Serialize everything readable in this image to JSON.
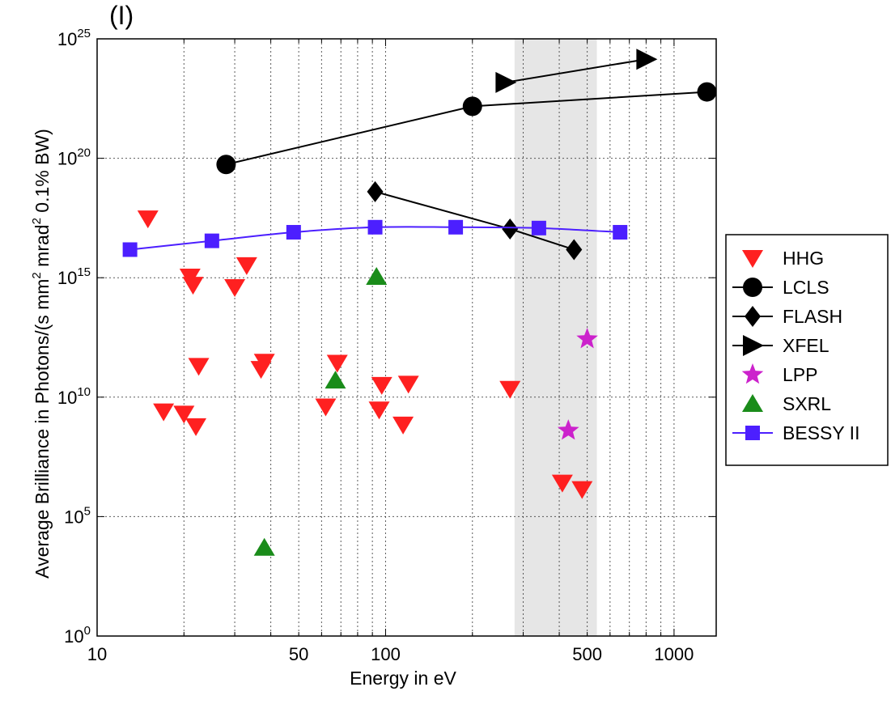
{
  "chart_data": {
    "type": "scatter",
    "panel_label": "(I)",
    "xlabel": "Energy in eV",
    "ylabel_parts": [
      "Average Brilliance in Photons/(s mm",
      "2",
      " mrad",
      "2",
      " 0.1% BW)"
    ],
    "xscale": "log",
    "yscale": "log",
    "xlim": [
      10,
      1400
    ],
    "ylim": [
      1,
      1e+25
    ],
    "x_ticks": [
      {
        "value": 10,
        "label": "10"
      },
      {
        "value": 50,
        "label": "50"
      },
      {
        "value": 100,
        "label": "100"
      },
      {
        "value": 500,
        "label": "500"
      },
      {
        "value": 1000,
        "label": "1000"
      }
    ],
    "y_ticks": [
      {
        "value": 1,
        "base": "10",
        "exp": "0"
      },
      {
        "value": 100000,
        "base": "10",
        "exp": "5"
      },
      {
        "value": 10000000000.0,
        "base": "10",
        "exp": "10"
      },
      {
        "value": 1000000000000000.0,
        "base": "10",
        "exp": "15"
      },
      {
        "value": 1e+20,
        "base": "10",
        "exp": "20"
      },
      {
        "value": 1e+25,
        "base": "10",
        "exp": "25"
      }
    ],
    "grid": true,
    "shaded_band": {
      "x": [
        280,
        540
      ],
      "color": "#e6e6e6"
    },
    "legend_position": "outside-right",
    "series": [
      {
        "name": "HHG",
        "marker": "triangle-down",
        "color": "#ff2020",
        "line": false,
        "points": [
          [
            15,
            3e+17
          ],
          [
            17,
            2500000000.0
          ],
          [
            20,
            2000000000.0
          ],
          [
            21,
            1100000000000000.0
          ],
          [
            21.5,
            500000000000000.0
          ],
          [
            22,
            600000000.0
          ],
          [
            22.5,
            200000000000.0
          ],
          [
            30,
            400000000000000.0
          ],
          [
            33,
            3300000000000000.0
          ],
          [
            37,
            150000000000.0
          ],
          [
            38,
            300000000000.0
          ],
          [
            62,
            4000000000.0
          ],
          [
            68,
            270000000000.0
          ],
          [
            95,
            3000000000.0
          ],
          [
            97,
            32000000000.0
          ],
          [
            115,
            700000000.0
          ],
          [
            120,
            36000000000.0
          ],
          [
            270,
            22000000000.0
          ],
          [
            410,
            2600000.0
          ],
          [
            480,
            1400000.0
          ]
        ]
      },
      {
        "name": "LCLS",
        "marker": "circle",
        "color": "#000000",
        "line": true,
        "points": [
          [
            28,
            5.5e+19
          ],
          [
            200,
            1.5e+22
          ],
          [
            1300,
            6e+22
          ]
        ]
      },
      {
        "name": "FLASH",
        "marker": "diamond",
        "color": "#000000",
        "line": true,
        "points": [
          [
            92,
            4e+18
          ],
          [
            270,
            1.1e+17
          ],
          [
            450,
            1.5e+16
          ]
        ]
      },
      {
        "name": "XFEL",
        "marker": "triangle-right",
        "color": "#000000",
        "line": true,
        "points": [
          [
            260,
            1.5e+23
          ],
          [
            800,
            1.4e+24
          ]
        ]
      },
      {
        "name": "LPP",
        "marker": "star",
        "color": "#cc22cc",
        "line": false,
        "points": [
          [
            430,
            400000000.0
          ],
          [
            500,
            2700000000000.0
          ]
        ]
      },
      {
        "name": "SXRL",
        "marker": "triangle-up",
        "color": "#1a8c1a",
        "line": false,
        "points": [
          [
            38,
            5000.0
          ],
          [
            67,
            50000000000.0
          ],
          [
            93,
            1100000000000000.0
          ]
        ]
      },
      {
        "name": "BESSY II",
        "marker": "square",
        "color": "#4c1fff",
        "line": true,
        "smooth": true,
        "points": [
          [
            13,
            1.5e+16
          ],
          [
            25,
            3.5e+16
          ],
          [
            48,
            8e+16
          ],
          [
            92,
            1.3e+17
          ],
          [
            175,
            1.3e+17
          ],
          [
            340,
            1.2e+17
          ],
          [
            650,
            8e+16
          ]
        ]
      }
    ]
  }
}
